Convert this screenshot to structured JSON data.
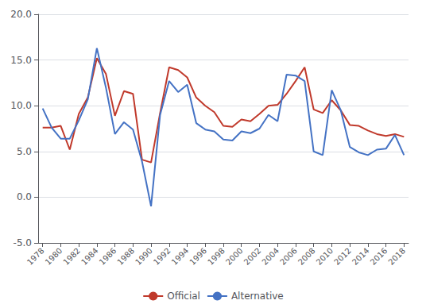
{
  "chart_data": {
    "type": "line",
    "x": [
      1978,
      1979,
      1980,
      1981,
      1982,
      1983,
      1984,
      1985,
      1986,
      1987,
      1988,
      1989,
      1990,
      1991,
      1992,
      1993,
      1994,
      1995,
      1996,
      1997,
      1998,
      1999,
      2000,
      2001,
      2002,
      2003,
      2004,
      2005,
      2006,
      2007,
      2008,
      2009,
      2010,
      2011,
      2012,
      2013,
      2014,
      2015,
      2016,
      2017,
      2018
    ],
    "series": [
      {
        "name": "Official",
        "color": "#c0392b",
        "values": [
          7.6,
          7.6,
          7.8,
          5.2,
          9.1,
          10.9,
          15.2,
          13.5,
          8.9,
          11.6,
          11.3,
          4.1,
          3.8,
          9.2,
          14.2,
          13.9,
          13.1,
          10.9,
          10.0,
          9.3,
          7.8,
          7.7,
          8.5,
          8.3,
          9.1,
          10.0,
          10.1,
          11.3,
          12.7,
          14.2,
          9.6,
          9.2,
          10.6,
          9.5,
          7.9,
          7.8,
          7.3,
          6.9,
          6.7,
          6.9,
          6.6
        ]
      },
      {
        "name": "Alternative",
        "color": "#4472c4",
        "values": [
          9.7,
          7.6,
          6.4,
          6.4,
          8.4,
          10.7,
          16.3,
          12.0,
          6.9,
          8.2,
          7.4,
          3.9,
          -1.0,
          9.0,
          12.7,
          11.5,
          12.3,
          8.1,
          7.4,
          7.2,
          6.3,
          6.2,
          7.2,
          7.0,
          7.5,
          9.0,
          8.3,
          13.4,
          13.3,
          12.7,
          5.0,
          4.6,
          11.7,
          9.5,
          5.5,
          4.9,
          4.6,
          5.2,
          5.3,
          6.8,
          4.6
        ]
      }
    ],
    "xlim": [
      1977.5,
      2018.5
    ],
    "xticks": [
      1978,
      1980,
      1982,
      1984,
      1986,
      1988,
      1990,
      1992,
      1994,
      1996,
      1998,
      2000,
      2002,
      2004,
      2006,
      2008,
      2010,
      2012,
      2014,
      2016,
      2018
    ],
    "ylim": [
      -5.0,
      20.0
    ],
    "yticks": [
      {
        "value": -5.0,
        "label": "-5.0"
      },
      {
        "value": 0.0,
        "label": "0.0"
      },
      {
        "value": 5.0,
        "label": "5.0"
      },
      {
        "value": 10.0,
        "label": "10.0"
      },
      {
        "value": 15.0,
        "label": "15.0"
      },
      {
        "value": 20.0,
        "label": "20.0"
      }
    ],
    "grid": true,
    "legend": "bottom"
  }
}
